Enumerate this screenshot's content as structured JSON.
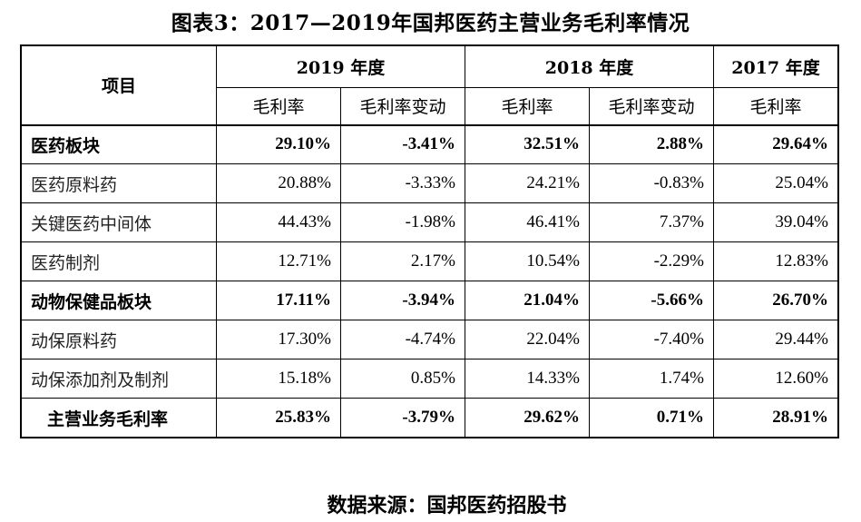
{
  "title": "图表3：2017—2019年国邦医药主营业务毛利率情况",
  "table": {
    "item_header": "项目",
    "years": [
      "2019 年度",
      "2018 年度",
      "2017 年度"
    ],
    "sub_headers": [
      "毛利率",
      "毛利率变动",
      "毛利率",
      "毛利率变动",
      "毛利率"
    ],
    "rows": [
      {
        "label": "医药板块",
        "bold": true,
        "values": [
          "29.10%",
          "-3.41%",
          "32.51%",
          "2.88%",
          "29.64%"
        ]
      },
      {
        "label": "医药原料药",
        "bold": false,
        "values": [
          "20.88%",
          "-3.33%",
          "24.21%",
          "-0.83%",
          "25.04%"
        ]
      },
      {
        "label": "关键医药中间体",
        "bold": false,
        "values": [
          "44.43%",
          "-1.98%",
          "46.41%",
          "7.37%",
          "39.04%"
        ]
      },
      {
        "label": "医药制剂",
        "bold": false,
        "values": [
          "12.71%",
          "2.17%",
          "10.54%",
          "-2.29%",
          "12.83%"
        ]
      },
      {
        "label": "动物保健品板块",
        "bold": true,
        "values": [
          "17.11%",
          "-3.94%",
          "21.04%",
          "-5.66%",
          "26.70%"
        ]
      },
      {
        "label": "动保原料药",
        "bold": false,
        "values": [
          "17.30%",
          "-4.74%",
          "22.04%",
          "-7.40%",
          "29.44%"
        ]
      },
      {
        "label": "动保添加剂及制剂",
        "bold": false,
        "values": [
          "15.18%",
          "0.85%",
          "14.33%",
          "1.74%",
          "12.60%"
        ]
      },
      {
        "label": "主营业务毛利率",
        "bold": true,
        "values": [
          "25.83%",
          "-3.79%",
          "29.62%",
          "0.71%",
          "28.91%"
        ]
      }
    ]
  },
  "source": "数据来源：国邦医药招股书"
}
